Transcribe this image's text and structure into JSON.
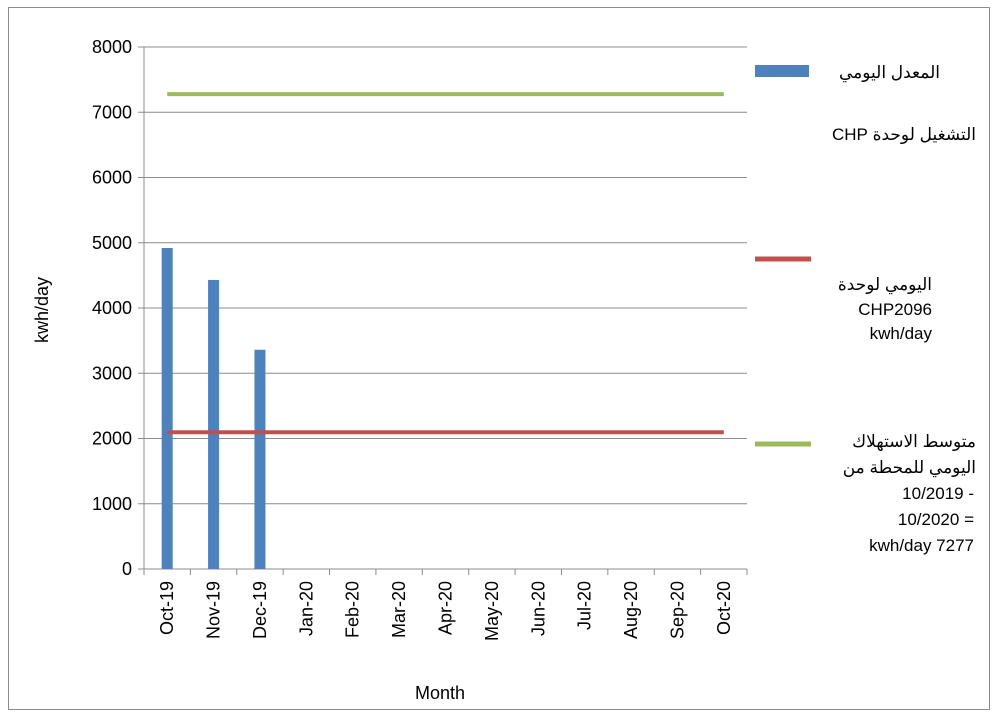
{
  "chart_data": {
    "type": "bar",
    "xlabel": "Month",
    "ylabel": "kwh/day",
    "ylim": [
      0,
      8000
    ],
    "yticks": [
      0,
      1000,
      2000,
      3000,
      4000,
      5000,
      6000,
      7000,
      8000
    ],
    "categories": [
      "Oct-19",
      "Nov-19",
      "Dec-19",
      "Jan-20",
      "Feb-20",
      "Mar-20",
      "Apr-20",
      "May-20",
      "Jun-20",
      "Jul-20",
      "Aug-20",
      "Sep-20",
      "Oct-20"
    ],
    "grid": true,
    "legend_position": "right",
    "series": [
      {
        "kind": "bar",
        "name": "المعدل اليومي التشغيل لوحدة CHP",
        "color": "#4f81bd",
        "values": [
          4920,
          4430,
          3360,
          null,
          null,
          null,
          null,
          null,
          null,
          null,
          null,
          null,
          null
        ]
      },
      {
        "kind": "line",
        "name": "اليومي لوحدة CHP2096 kwh/day",
        "color": "#c0504d",
        "values": [
          2096,
          2096,
          2096,
          2096,
          2096,
          2096,
          2096,
          2096,
          2096,
          2096,
          2096,
          2096,
          2096
        ]
      },
      {
        "kind": "line",
        "name": "متوسط الاستهلاك اليومي للمحطة من 10/2019 - 10/2020 = 7277 kwh/day",
        "color": "#9bbb59",
        "values": [
          7277,
          7277,
          7277,
          7277,
          7277,
          7277,
          7277,
          7277,
          7277,
          7277,
          7277,
          7277,
          7277
        ]
      }
    ]
  },
  "legend": {
    "bar_lines": [
      "المعدل اليومي",
      "التشغيل لوحدة CHP"
    ],
    "red_lines": [
      "اليومي لوحدة",
      "CHP2096",
      "kwh/day"
    ],
    "green_lines": [
      "متوسط الاستهلاك",
      "اليومي للمحطة من",
      "10/2019 -",
      "10/2020 =",
      "kwh/day 7277"
    ]
  }
}
